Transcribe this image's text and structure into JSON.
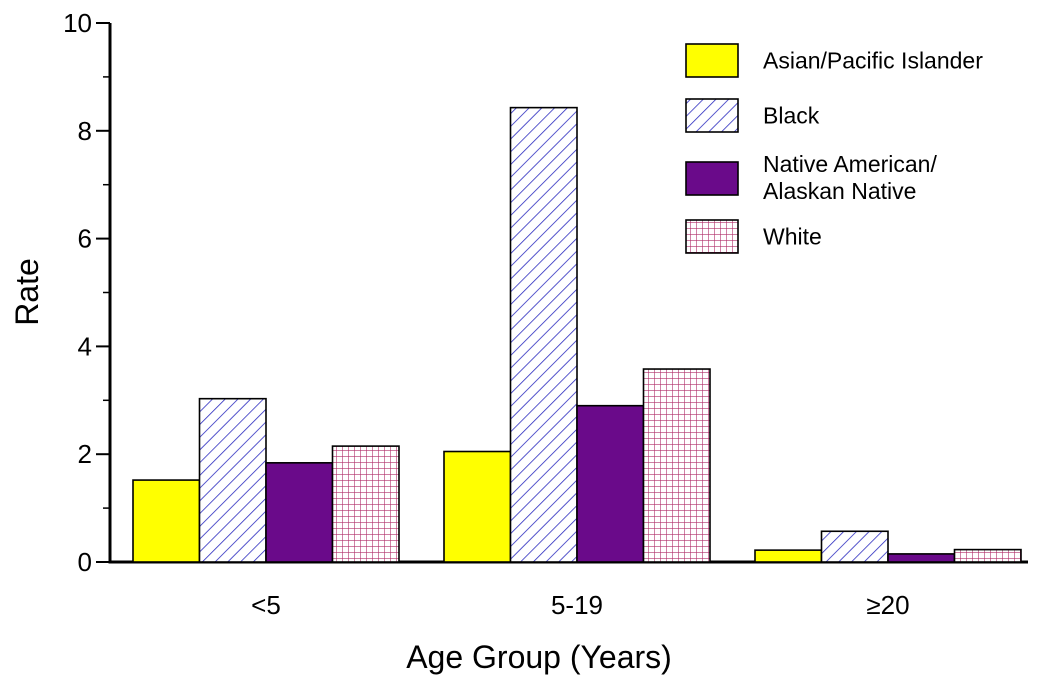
{
  "chart_data": {
    "type": "bar",
    "xlabel": "Age Group (Years)",
    "ylabel": "Rate",
    "ylim": [
      0,
      10
    ],
    "yticks": [
      "0",
      "2",
      "4",
      "6",
      "8",
      "10"
    ],
    "categories": [
      "<5",
      "5-19",
      "≥20"
    ],
    "grid": false,
    "legend_position": "top-right",
    "series": [
      {
        "name": "Asian/Pacific Islander",
        "legend_lines": [
          "Asian/Pacific Islander"
        ],
        "pattern": "solid",
        "color": "#ffff00",
        "values": [
          1.52,
          2.05,
          0.22
        ]
      },
      {
        "name": "Black",
        "legend_lines": [
          "Black"
        ],
        "pattern": "diagonal-hatch",
        "color": "#2b2bbf",
        "values": [
          3.03,
          8.43,
          0.57
        ]
      },
      {
        "name": "Native American/ Alaskan Native",
        "legend_lines": [
          "Native American/",
          "Alaskan Native"
        ],
        "pattern": "solid",
        "color": "#6a0a8a",
        "values": [
          1.84,
          2.9,
          0.15
        ]
      },
      {
        "name": "White",
        "legend_lines": [
          "White"
        ],
        "pattern": "grid-hatch",
        "color": "#b0306a",
        "values": [
          2.15,
          3.58,
          0.23
        ]
      }
    ]
  }
}
